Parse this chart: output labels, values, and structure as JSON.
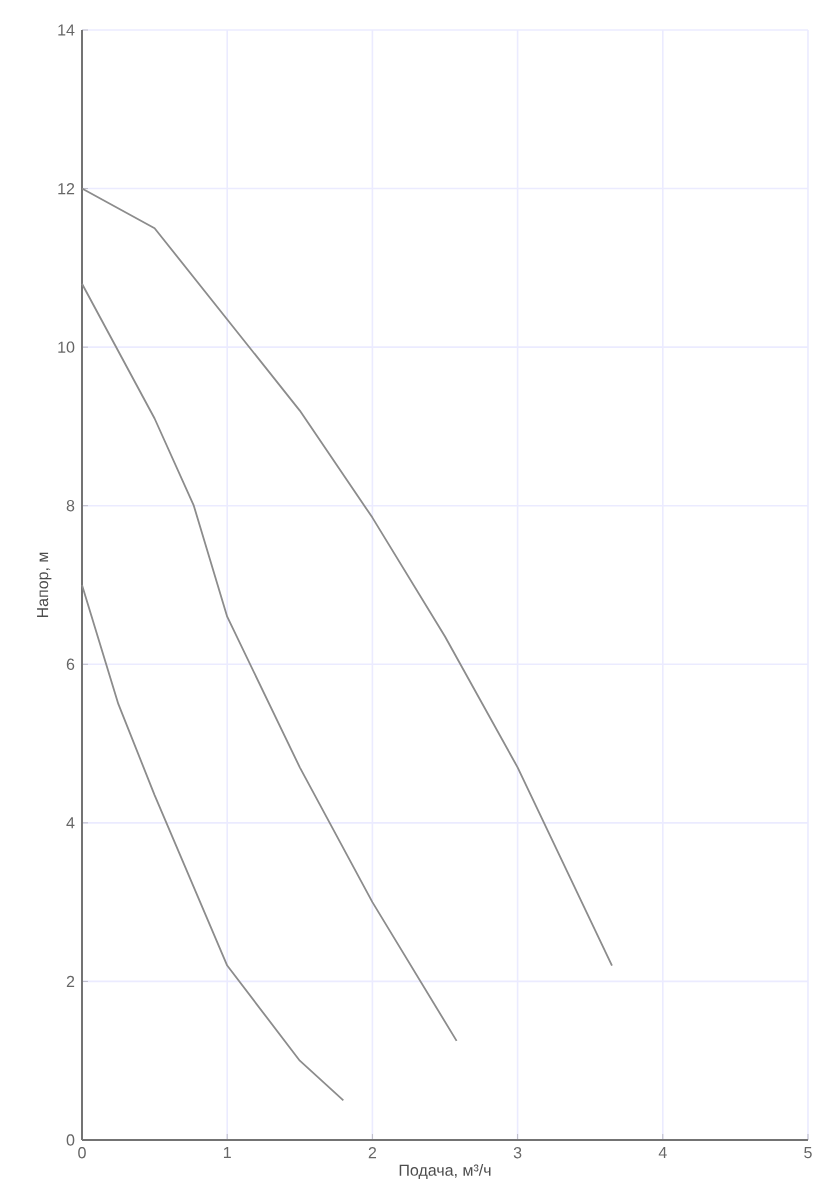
{
  "chart_data": {
    "type": "line",
    "xlabel": "Подача, м³/ч",
    "ylabel": "Напор, м",
    "xlim": [
      0,
      5
    ],
    "ylim": [
      0,
      14
    ],
    "xticks": [
      0,
      1,
      2,
      3,
      4,
      5
    ],
    "yticks": [
      0,
      2,
      4,
      6,
      8,
      10,
      12,
      14
    ],
    "grid": true,
    "legend": false,
    "marker": "none",
    "line_style": "solid",
    "series": [
      {
        "color": "#8c8c8c",
        "x": [
          0,
          0.5,
          1,
          1.5,
          2,
          2.5,
          3,
          3.65
        ],
        "values": [
          12,
          11.5,
          10.35,
          9.2,
          7.85,
          6.35,
          4.7,
          2.2
        ]
      },
      {
        "color": "#8c8c8c",
        "x": [
          0,
          0.5,
          0.77,
          1,
          1.5,
          2,
          2.58
        ],
        "values": [
          10.8,
          9.1,
          8,
          6.6,
          4.7,
          3.0,
          1.25
        ]
      },
      {
        "color": "#8c8c8c",
        "x": [
          0,
          0.25,
          0.5,
          1,
          1.5,
          1.8
        ],
        "values": [
          7,
          5.5,
          4.35,
          2.2,
          1.0,
          0.5
        ]
      }
    ]
  }
}
